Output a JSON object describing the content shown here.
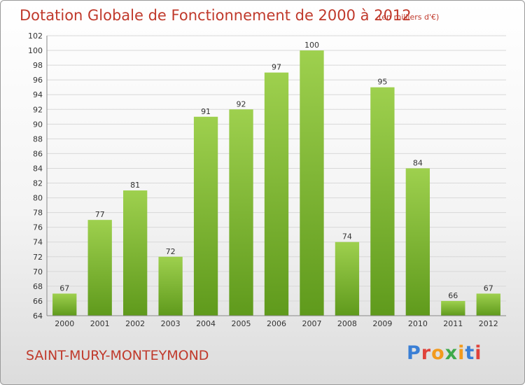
{
  "header": {
    "title": "Dotation Globale de Fonctionnement de 2000 à 2012",
    "subtitle": "(en milliers d'€)"
  },
  "footer": {
    "commune": "SAINT-MURY-MONTEYMOND",
    "logo_letters": [
      "P",
      "r",
      "o",
      "x",
      "i",
      "t",
      "i"
    ],
    "logo_colors": [
      "#3a7fd5",
      "#e0423a",
      "#f29a1d",
      "#3fa94a",
      "#f29a1d",
      "#3a7fd5",
      "#e0423a"
    ]
  },
  "colors": {
    "bar_top": "#9ed04e",
    "bar_bottom": "#5f9a1c",
    "grid": "#d8d8d8",
    "axis": "#888888",
    "text": "#333333",
    "accent": "#c0392b"
  },
  "chart_data": {
    "type": "bar",
    "title": "Dotation Globale de Fonctionnement de 2000 à 2012",
    "subtitle": "(en milliers d'€)",
    "categories": [
      "2000",
      "2001",
      "2002",
      "2003",
      "2004",
      "2005",
      "2006",
      "2007",
      "2008",
      "2009",
      "2010",
      "2011",
      "2012"
    ],
    "values": [
      67,
      77,
      81,
      72,
      91,
      92,
      97,
      100,
      74,
      95,
      84,
      66,
      67
    ],
    "ylim": [
      64,
      102
    ],
    "yticks": [
      64,
      66,
      68,
      70,
      72,
      74,
      76,
      78,
      80,
      82,
      84,
      86,
      88,
      90,
      92,
      94,
      96,
      98,
      100,
      102
    ],
    "grid": true,
    "data_labels": true
  }
}
